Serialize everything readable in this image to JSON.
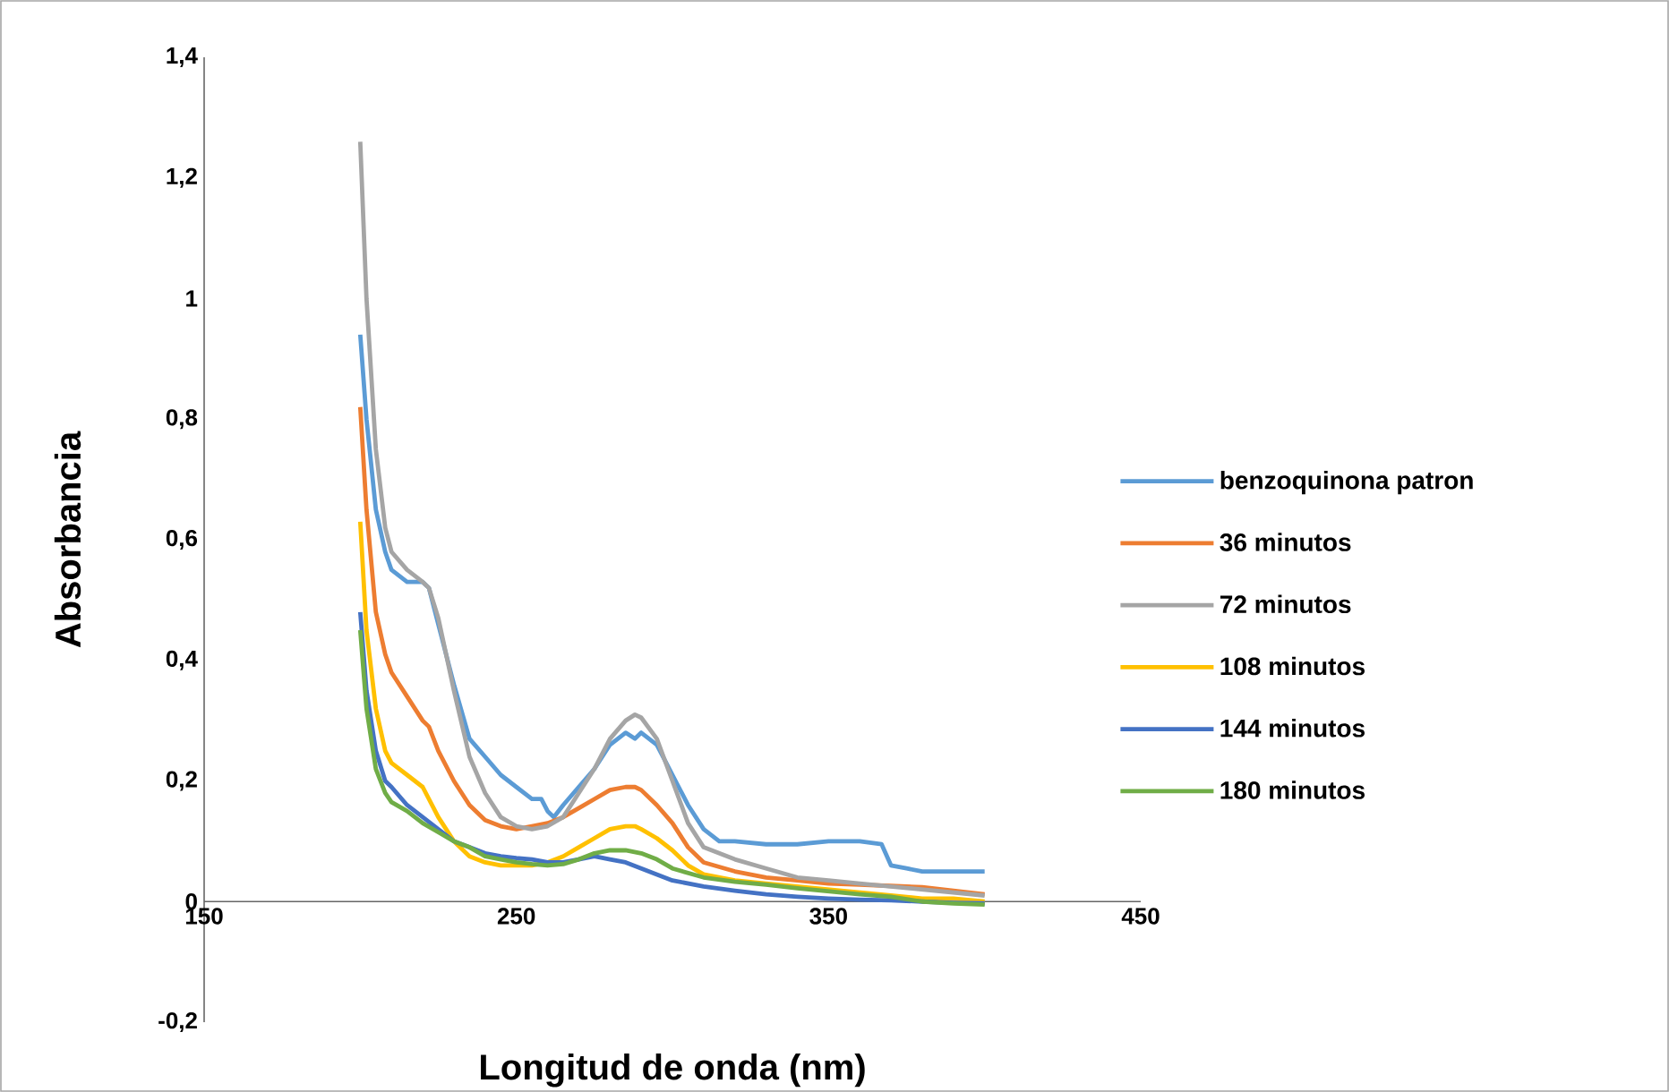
{
  "chart_data": {
    "type": "line",
    "xlabel": "Longitud de onda (nm)",
    "ylabel": "Absorbancia",
    "xlim": [
      150,
      450
    ],
    "xticks": [
      150,
      250,
      350,
      450
    ],
    "ylim": [
      -0.2,
      1.4
    ],
    "yticks": [
      {
        "value": -0.2,
        "label": "-0,2"
      },
      {
        "value": 0,
        "label": "0"
      },
      {
        "value": 0.2,
        "label": "0,2"
      },
      {
        "value": 0.4,
        "label": "0,4"
      },
      {
        "value": 0.6,
        "label": "0,6"
      },
      {
        "value": 0.8,
        "label": "0,8"
      },
      {
        "value": 1,
        "label": "1"
      },
      {
        "value": 1.2,
        "label": "1,2"
      },
      {
        "value": 1.4,
        "label": "1,4"
      }
    ],
    "legend": "right",
    "marker": "none",
    "series": [
      {
        "name": "benzoquinona patron",
        "color": "#5b9bd5",
        "x": [
          200,
          202,
          205,
          208,
          210,
          215,
          220,
          222,
          225,
          230,
          235,
          240,
          245,
          250,
          255,
          258,
          260,
          262,
          265,
          270,
          275,
          280,
          285,
          288,
          290,
          295,
          300,
          305,
          310,
          315,
          320,
          330,
          340,
          350,
          360,
          367,
          370,
          375,
          380,
          390,
          400
        ],
        "values": [
          0.94,
          0.8,
          0.65,
          0.58,
          0.55,
          0.53,
          0.53,
          0.52,
          0.46,
          0.36,
          0.27,
          0.24,
          0.21,
          0.19,
          0.17,
          0.17,
          0.15,
          0.14,
          0.16,
          0.19,
          0.22,
          0.26,
          0.28,
          0.27,
          0.28,
          0.26,
          0.21,
          0.16,
          0.12,
          0.1,
          0.1,
          0.095,
          0.095,
          0.1,
          0.1,
          0.095,
          0.06,
          0.055,
          0.05,
          0.05,
          0.05
        ]
      },
      {
        "name": "36 minutos",
        "color": "#ed7d31",
        "x": [
          200,
          202,
          205,
          208,
          210,
          215,
          220,
          222,
          225,
          230,
          235,
          240,
          245,
          250,
          255,
          260,
          265,
          270,
          275,
          280,
          285,
          288,
          290,
          295,
          300,
          305,
          310,
          320,
          330,
          340,
          350,
          360,
          370,
          380,
          390,
          400
        ],
        "values": [
          0.82,
          0.65,
          0.48,
          0.41,
          0.38,
          0.34,
          0.3,
          0.29,
          0.25,
          0.2,
          0.16,
          0.135,
          0.125,
          0.12,
          0.125,
          0.13,
          0.14,
          0.155,
          0.17,
          0.185,
          0.19,
          0.19,
          0.185,
          0.16,
          0.13,
          0.09,
          0.065,
          0.05,
          0.04,
          0.035,
          0.03,
          0.028,
          0.026,
          0.024,
          0.018,
          0.012
        ]
      },
      {
        "name": "72 minutos",
        "color": "#a5a5a5",
        "x": [
          200,
          202,
          205,
          208,
          210,
          215,
          220,
          222,
          225,
          230,
          235,
          240,
          245,
          250,
          255,
          260,
          265,
          270,
          275,
          280,
          285,
          288,
          290,
          295,
          300,
          305,
          310,
          320,
          330,
          340,
          350,
          360,
          370,
          380,
          390,
          400
        ],
        "values": [
          1.26,
          1.0,
          0.75,
          0.62,
          0.58,
          0.55,
          0.53,
          0.52,
          0.47,
          0.35,
          0.24,
          0.18,
          0.14,
          0.125,
          0.12,
          0.125,
          0.14,
          0.18,
          0.22,
          0.27,
          0.3,
          0.31,
          0.305,
          0.27,
          0.2,
          0.13,
          0.09,
          0.07,
          0.055,
          0.04,
          0.035,
          0.03,
          0.025,
          0.02,
          0.015,
          0.01
        ]
      },
      {
        "name": "108 minutos",
        "color": "#ffc000",
        "x": [
          200,
          202,
          205,
          208,
          210,
          215,
          220,
          225,
          230,
          235,
          240,
          245,
          250,
          255,
          260,
          265,
          270,
          275,
          280,
          285,
          288,
          290,
          295,
          300,
          305,
          310,
          320,
          330,
          340,
          350,
          360,
          370,
          380,
          390,
          400
        ],
        "values": [
          0.63,
          0.45,
          0.32,
          0.25,
          0.23,
          0.21,
          0.19,
          0.14,
          0.1,
          0.075,
          0.065,
          0.06,
          0.06,
          0.06,
          0.065,
          0.075,
          0.09,
          0.105,
          0.12,
          0.125,
          0.125,
          0.12,
          0.105,
          0.085,
          0.06,
          0.045,
          0.035,
          0.03,
          0.025,
          0.02,
          0.015,
          0.01,
          0.005,
          0.005,
          0.0
        ]
      },
      {
        "name": "144 minutos",
        "color": "#4472c4",
        "x": [
          200,
          202,
          205,
          208,
          210,
          215,
          220,
          225,
          230,
          235,
          240,
          245,
          250,
          255,
          260,
          265,
          270,
          275,
          280,
          285,
          290,
          295,
          300,
          310,
          320,
          330,
          340,
          350,
          360,
          370,
          380,
          390,
          400
        ],
        "values": [
          0.48,
          0.35,
          0.25,
          0.2,
          0.19,
          0.16,
          0.14,
          0.12,
          0.1,
          0.09,
          0.08,
          0.075,
          0.072,
          0.07,
          0.065,
          0.065,
          0.07,
          0.075,
          0.07,
          0.065,
          0.055,
          0.045,
          0.035,
          0.025,
          0.018,
          0.012,
          0.008,
          0.005,
          0.003,
          0.002,
          0.0,
          -0.002,
          -0.003
        ]
      },
      {
        "name": "180 minutos",
        "color": "#70ad47",
        "x": [
          200,
          202,
          205,
          208,
          210,
          215,
          220,
          225,
          230,
          235,
          240,
          245,
          250,
          255,
          260,
          265,
          270,
          275,
          280,
          285,
          290,
          295,
          300,
          310,
          320,
          330,
          340,
          350,
          360,
          370,
          380,
          390,
          400
        ],
        "values": [
          0.45,
          0.32,
          0.22,
          0.18,
          0.165,
          0.15,
          0.13,
          0.115,
          0.1,
          0.09,
          0.075,
          0.07,
          0.065,
          0.062,
          0.06,
          0.062,
          0.07,
          0.08,
          0.085,
          0.085,
          0.08,
          0.07,
          0.055,
          0.04,
          0.033,
          0.028,
          0.022,
          0.017,
          0.012,
          0.008,
          0.0,
          -0.003,
          -0.005
        ]
      }
    ]
  }
}
